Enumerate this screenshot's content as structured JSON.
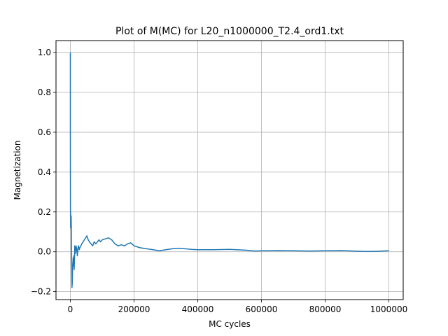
{
  "chart_data": {
    "type": "line",
    "title": "Plot of M(MC) for L20_n1000000_T2.4_ord1.txt",
    "xlabel": "MC cycles",
    "ylabel": "Magnetization",
    "xlim": [
      -45000,
      1045000
    ],
    "ylim": [
      -0.24,
      1.06
    ],
    "grid": true,
    "line_color": "#1f77b4",
    "x_ticks": [
      0,
      200000,
      400000,
      600000,
      800000,
      1000000
    ],
    "x_tick_labels": [
      "0",
      "200000",
      "400000",
      "600000",
      "800000",
      "1000000"
    ],
    "y_ticks": [
      -0.2,
      0.0,
      0.2,
      0.4,
      0.6,
      0.8,
      1.0
    ],
    "y_tick_labels": [
      "−0.2",
      "0.0",
      "0.2",
      "0.4",
      "0.6",
      "0.8",
      "1.0"
    ],
    "series": [
      {
        "x": [
          0,
          150,
          300,
          500,
          800,
          1200,
          1800,
          2500,
          3500,
          4200,
          5000,
          6000,
          7000,
          8000,
          9000,
          10000,
          11000,
          12000,
          13000,
          14000,
          15000,
          16000,
          18000,
          20000,
          22000,
          24000,
          26000,
          28000,
          30000,
          33000,
          36000,
          40000,
          44000,
          48000,
          52000,
          56000,
          60000,
          65000,
          70000,
          75000,
          80000,
          85000,
          90000,
          95000,
          100000,
          110000,
          120000,
          130000,
          140000,
          150000,
          160000,
          170000,
          180000,
          190000,
          200000,
          210000,
          220000,
          240000,
          260000,
          280000,
          300000,
          320000,
          340000,
          360000,
          380000,
          400000,
          450000,
          500000,
          550000,
          580000,
          600000,
          650000,
          700000,
          750000,
          800000,
          850000,
          900000,
          920000,
          950000,
          1000000
        ],
        "y": [
          1.0,
          0.6,
          0.3,
          0.18,
          0.2,
          0.12,
          0.15,
          0.18,
          0.08,
          -0.05,
          -0.18,
          -0.16,
          -0.08,
          -0.06,
          -0.03,
          -0.07,
          -0.02,
          -0.09,
          -0.04,
          0.03,
          -0.01,
          0.0,
          0.03,
          0.01,
          -0.02,
          0.02,
          0.03,
          0.01,
          0.02,
          0.03,
          0.04,
          0.05,
          0.06,
          0.07,
          0.08,
          0.06,
          0.05,
          0.04,
          0.03,
          0.05,
          0.04,
          0.05,
          0.06,
          0.05,
          0.06,
          0.065,
          0.07,
          0.06,
          0.04,
          0.03,
          0.035,
          0.03,
          0.04,
          0.045,
          0.03,
          0.025,
          0.02,
          0.015,
          0.01,
          0.005,
          0.01,
          0.015,
          0.018,
          0.015,
          0.012,
          0.01,
          0.01,
          0.012,
          0.008,
          0.004,
          0.005,
          0.006,
          0.005,
          0.004,
          0.005,
          0.006,
          0.003,
          0.002,
          0.002,
          0.005
        ]
      }
    ]
  }
}
